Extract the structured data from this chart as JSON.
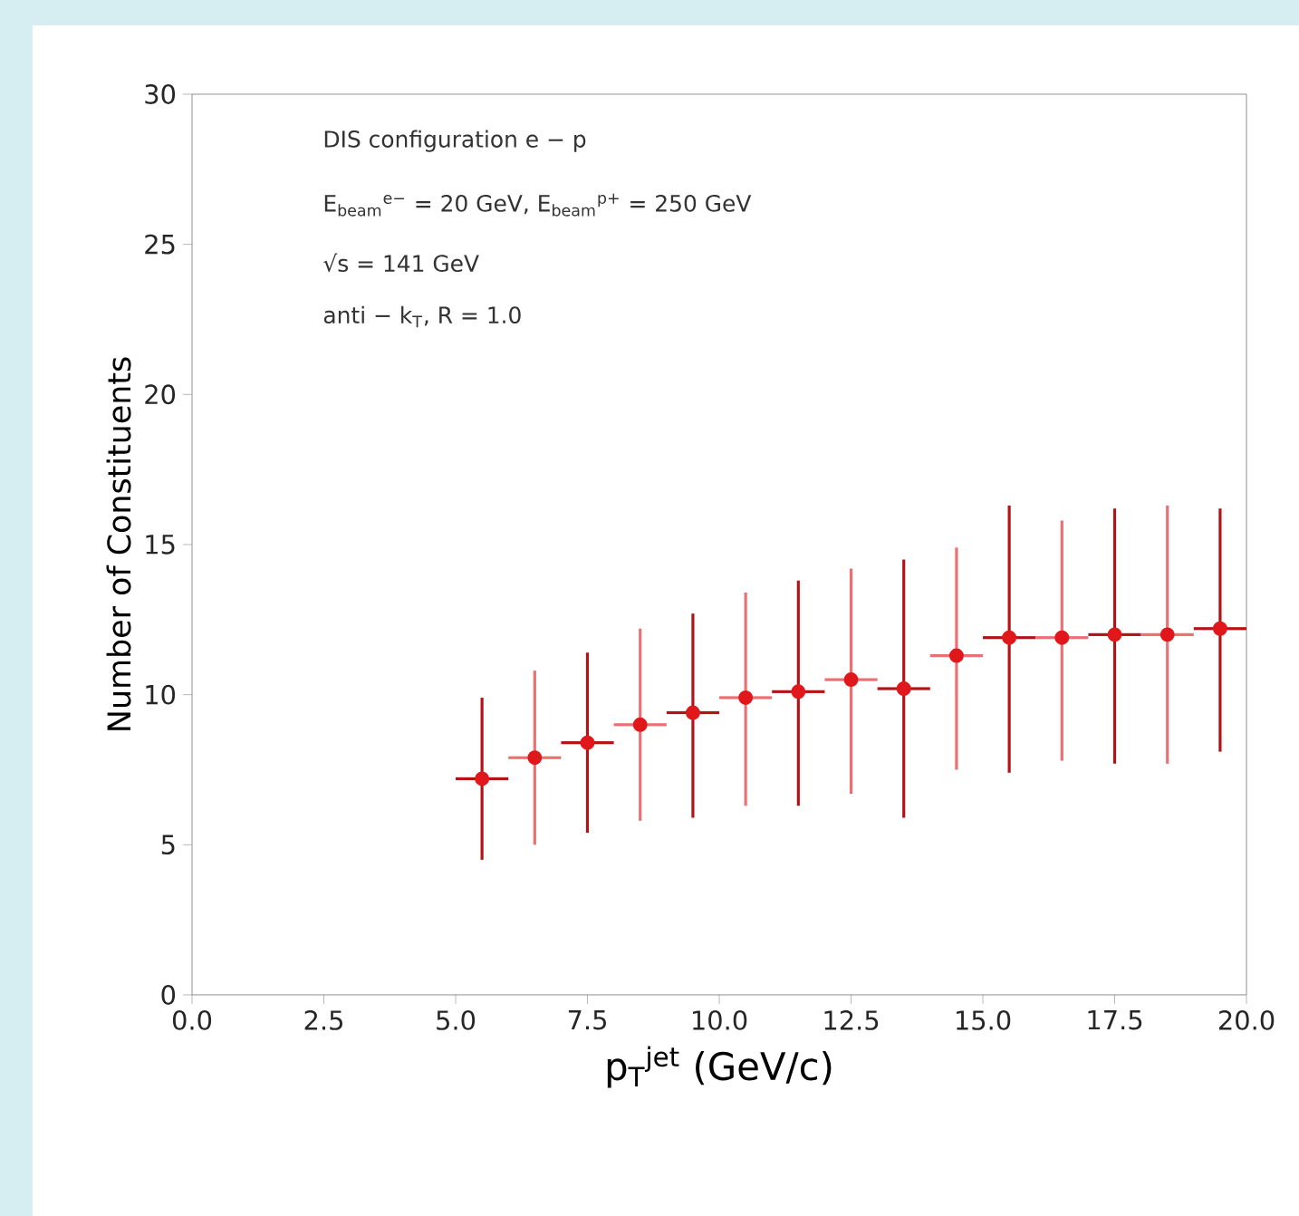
{
  "chart_data": {
    "type": "scatter",
    "xlabel": "p$_{T}$$^{jet}$  (GeV/c)",
    "ylabel": "Number of Constituents",
    "annotations": [
      "DIS configuration e − p",
      "E$_{beam}$$^{e−}$ = 20 GeV,  E$_{beam}$$^{p+}$ = 250 GeV",
      "√s  =  141 GeV",
      "anti − k$_{T}$,  R = 1.0"
    ],
    "x": [
      5.5,
      6.5,
      7.5,
      8.5,
      9.5,
      10.5,
      11.5,
      12.5,
      13.5,
      14.5,
      15.5,
      16.5,
      17.5,
      18.5,
      19.5
    ],
    "values": [
      7.2,
      7.9,
      8.4,
      9.0,
      9.4,
      9.9,
      10.1,
      10.5,
      10.2,
      11.3,
      11.9,
      11.9,
      12.0,
      12.0,
      12.2
    ],
    "errors": [
      [
        4.5,
        9.9
      ],
      [
        5.0,
        10.8
      ],
      [
        5.4,
        11.4
      ],
      [
        5.8,
        12.2
      ],
      [
        5.9,
        12.7
      ],
      [
        6.3,
        13.4
      ],
      [
        6.3,
        13.8
      ],
      [
        6.7,
        14.2
      ],
      [
        5.9,
        14.5
      ],
      [
        7.5,
        14.9
      ],
      [
        7.4,
        16.3
      ],
      [
        7.8,
        15.8
      ],
      [
        7.7,
        16.2
      ],
      [
        7.7,
        16.3
      ],
      [
        8.1,
        16.2
      ]
    ],
    "xerrors": [
      0.5,
      0.5,
      0.5,
      0.5,
      0.5,
      0.5,
      0.5,
      0.5,
      0.5,
      0.5,
      0.5,
      0.5,
      0.5,
      0.5,
      0.5
    ],
    "color": "#e0181b",
    "marker": "circle",
    "xlim": [
      0,
      20
    ],
    "ylim": [
      0,
      30
    ],
    "xticks": [
      {
        "value": 0,
        "label": "0.0"
      },
      {
        "value": 2.5,
        "label": "2.5"
      },
      {
        "value": 5,
        "label": "5.0"
      },
      {
        "value": 7.5,
        "label": "7.5"
      },
      {
        "value": 10,
        "label": "10.0"
      },
      {
        "value": 12.5,
        "label": "12.5"
      },
      {
        "value": 15,
        "label": "15.0"
      },
      {
        "value": 17.5,
        "label": "17.5"
      },
      {
        "value": 20,
        "label": "20.0"
      }
    ],
    "yticks": [
      0,
      5,
      10,
      15,
      20,
      25,
      30
    ]
  }
}
